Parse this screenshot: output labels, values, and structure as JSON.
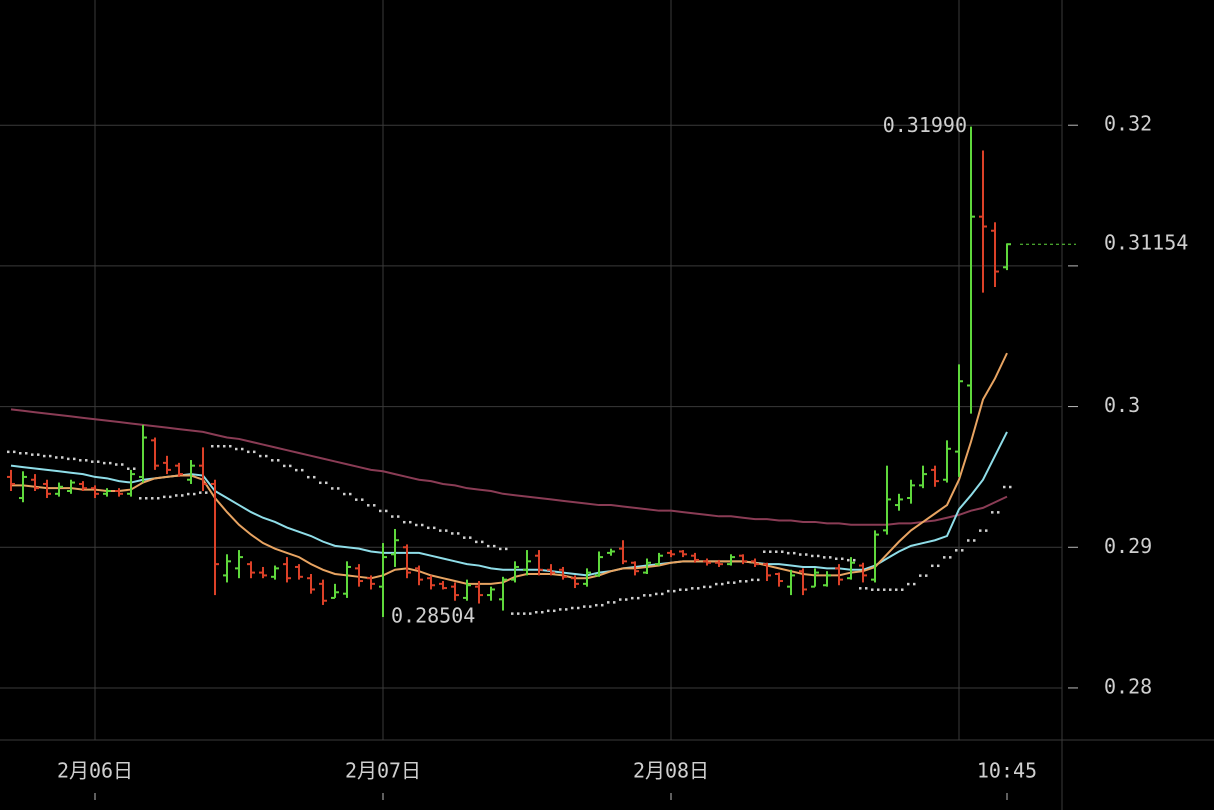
{
  "chart_data": {
    "type": "ohlc",
    "categories": [
      null,
      null,
      null,
      null,
      null,
      null,
      null,
      null,
      null,
      null,
      null,
      null,
      null,
      null,
      null,
      null,
      null,
      null,
      null,
      null,
      null,
      null,
      null,
      null,
      null,
      null,
      null,
      null,
      null,
      null,
      null,
      null,
      null,
      null,
      null,
      null,
      null,
      null,
      null,
      null,
      null,
      null,
      null,
      null,
      null,
      null,
      null,
      null,
      null,
      null,
      null,
      null,
      null,
      null,
      null,
      null,
      null,
      null,
      null,
      null,
      null,
      null,
      null,
      null,
      null,
      null,
      null,
      null,
      null,
      null,
      null,
      null,
      null,
      null,
      null,
      null,
      null,
      null,
      null,
      null,
      null,
      null,
      null,
      null
    ],
    "open": [
      0.295,
      0.2935,
      0.2948,
      0.2945,
      0.2938,
      0.294,
      0.2945,
      0.2942,
      0.2938,
      0.294,
      0.2938,
      0.295,
      0.2976,
      0.296,
      0.2958,
      0.2948,
      0.2958,
      0.2945,
      0.288,
      0.2885,
      0.2888,
      0.2882,
      0.2879,
      0.2888,
      0.2886,
      0.2878,
      0.2874,
      0.2864,
      0.2867,
      0.2885,
      0.2878,
      0.2872,
      0.2895,
      0.29,
      0.2885,
      0.2878,
      0.2874,
      0.2872,
      0.2864,
      0.2872,
      0.2866,
      0.2863,
      0.2877,
      0.2884,
      0.2894,
      0.2884,
      0.2884,
      0.2878,
      0.2874,
      0.288,
      0.2896,
      0.2899,
      0.2889,
      0.2882,
      0.2888,
      0.2896,
      0.2897,
      0.2894,
      0.289,
      0.2889,
      0.2888,
      0.2894,
      0.289,
      0.2888,
      0.2881,
      0.2872,
      0.2883,
      0.2872,
      0.2873,
      0.2885,
      0.2878,
      0.2887,
      0.2877,
      0.2912,
      0.293,
      0.2935,
      0.2944,
      0.2955,
      0.2948,
      0.2968,
      0.3015,
      0.3135,
      0.3125,
      0.3099
    ],
    "high": [
      0.2955,
      0.2954,
      0.2952,
      0.2948,
      0.2946,
      0.2948,
      0.2947,
      0.2944,
      0.2942,
      0.2942,
      0.2955,
      0.2987,
      0.2978,
      0.2965,
      0.296,
      0.2962,
      0.2971,
      0.2948,
      0.2895,
      0.2898,
      0.289,
      0.2886,
      0.2887,
      0.2893,
      0.2888,
      0.2881,
      0.2877,
      0.2874,
      0.289,
      0.2888,
      0.288,
      0.2903,
      0.2913,
      0.2902,
      0.2887,
      0.288,
      0.2876,
      0.2875,
      0.2877,
      0.2876,
      0.2872,
      0.2879,
      0.289,
      0.2898,
      0.2898,
      0.2888,
      0.2886,
      0.288,
      0.2885,
      0.2897,
      0.2899,
      0.2905,
      0.289,
      0.2892,
      0.2896,
      0.2898,
      0.2898,
      0.2896,
      0.2892,
      0.2891,
      0.2895,
      0.2895,
      0.2892,
      0.2889,
      0.2882,
      0.2884,
      0.2885,
      0.2885,
      0.2883,
      0.2888,
      0.2893,
      0.2889,
      0.2912,
      0.2958,
      0.2938,
      0.2948,
      0.2958,
      0.2958,
      0.2976,
      0.303,
      0.3199,
      0.3182,
      0.3131,
      0.3116
    ],
    "low": [
      0.294,
      0.2932,
      0.294,
      0.2935,
      0.2936,
      0.2938,
      0.294,
      0.2935,
      0.2936,
      0.2936,
      0.2936,
      0.2946,
      0.2955,
      0.2952,
      0.295,
      0.2945,
      0.294,
      0.2866,
      0.2875,
      0.2878,
      0.2878,
      0.2878,
      0.2877,
      0.2875,
      0.2877,
      0.2867,
      0.2859,
      0.2864,
      0.2864,
      0.2872,
      0.287,
      0.28504,
      0.2886,
      0.2878,
      0.2873,
      0.287,
      0.287,
      0.2862,
      0.2862,
      0.286,
      0.2862,
      0.2855,
      0.2875,
      0.288,
      0.288,
      0.288,
      0.2877,
      0.2871,
      0.2872,
      0.2879,
      0.2894,
      0.2888,
      0.288,
      0.2881,
      0.2887,
      0.2893,
      0.2893,
      0.2889,
      0.2887,
      0.2886,
      0.2887,
      0.2888,
      0.2886,
      0.2876,
      0.2872,
      0.2866,
      0.2866,
      0.2872,
      0.2872,
      0.2873,
      0.2877,
      0.2875,
      0.2875,
      0.2909,
      0.2926,
      0.2931,
      0.2942,
      0.2943,
      0.2946,
      0.295,
      0.2995,
      0.3081,
      0.3085,
      0.3097
    ],
    "close": [
      0.2945,
      0.295,
      0.2942,
      0.2938,
      0.2943,
      0.2946,
      0.2942,
      0.2938,
      0.294,
      0.2938,
      0.2952,
      0.2978,
      0.2958,
      0.2955,
      0.2952,
      0.2958,
      0.2945,
      0.2888,
      0.289,
      0.2893,
      0.2882,
      0.288,
      0.2885,
      0.2878,
      0.2879,
      0.287,
      0.2862,
      0.2868,
      0.2886,
      0.2876,
      0.2874,
      0.2893,
      0.2905,
      0.2882,
      0.2877,
      0.2873,
      0.2871,
      0.2866,
      0.2873,
      0.2866,
      0.287,
      0.2877,
      0.2886,
      0.289,
      0.2884,
      0.2882,
      0.2879,
      0.2874,
      0.2882,
      0.2893,
      0.2897,
      0.289,
      0.2883,
      0.2889,
      0.2894,
      0.2895,
      0.2895,
      0.2891,
      0.2889,
      0.2888,
      0.2893,
      0.289,
      0.2888,
      0.288,
      0.2876,
      0.288,
      0.287,
      0.2882,
      0.288,
      0.2877,
      0.2889,
      0.288,
      0.2909,
      0.2934,
      0.2934,
      0.2944,
      0.2952,
      0.2947,
      0.297,
      0.3018,
      0.3135,
      0.3128,
      0.3096,
      0.31154
    ],
    "up_color": "#5fd83c",
    "down_color": "#dc4128",
    "series": [
      {
        "color": "#8a3c55",
        "style": "line",
        "values": [
          0.2998,
          0.2997,
          0.2996,
          0.2995,
          0.2994,
          0.2993,
          0.2992,
          0.2991,
          0.299,
          0.2989,
          0.2988,
          0.2987,
          0.2986,
          0.2985,
          0.2984,
          0.2983,
          0.2982,
          0.298,
          0.2978,
          0.2977,
          0.2975,
          0.2973,
          0.2971,
          0.2969,
          0.2967,
          0.2965,
          0.2963,
          0.2961,
          0.2959,
          0.2957,
          0.2955,
          0.2954,
          0.2952,
          0.295,
          0.2948,
          0.2947,
          0.2945,
          0.2944,
          0.2942,
          0.2941,
          0.294,
          0.2938,
          0.2937,
          0.2936,
          0.2935,
          0.2934,
          0.2933,
          0.2932,
          0.2931,
          0.293,
          0.293,
          0.2929,
          0.2928,
          0.2927,
          0.2926,
          0.2926,
          0.2925,
          0.2924,
          0.2923,
          0.2922,
          0.2922,
          0.2921,
          0.292,
          0.292,
          0.2919,
          0.2919,
          0.2918,
          0.2918,
          0.2917,
          0.2917,
          0.2916,
          0.2916,
          0.2916,
          0.2916,
          0.2917,
          0.2917,
          0.2918,
          0.2919,
          0.2921,
          0.2923,
          0.2926,
          0.2928,
          0.2932,
          0.2936
        ]
      },
      {
        "color": "#8fdde8",
        "style": "line",
        "values": [
          0.2958,
          0.2957,
          0.2956,
          0.2955,
          0.2954,
          0.2953,
          0.2952,
          0.295,
          0.2949,
          0.2947,
          0.2946,
          0.2948,
          0.2949,
          0.295,
          0.2951,
          0.2952,
          0.2951,
          0.294,
          0.2935,
          0.293,
          0.2925,
          0.2921,
          0.2918,
          0.2914,
          0.2911,
          0.2908,
          0.2904,
          0.2901,
          0.29,
          0.2899,
          0.2897,
          0.2896,
          0.2896,
          0.2896,
          0.2896,
          0.2894,
          0.2892,
          0.289,
          0.2888,
          0.2887,
          0.2885,
          0.2884,
          0.2884,
          0.2884,
          0.2884,
          0.2883,
          0.2882,
          0.2881,
          0.288,
          0.2882,
          0.2883,
          0.2885,
          0.2886,
          0.2887,
          0.2888,
          0.2889,
          0.289,
          0.289,
          0.289,
          0.289,
          0.289,
          0.289,
          0.2889,
          0.2888,
          0.2888,
          0.2887,
          0.2886,
          0.2886,
          0.2885,
          0.2885,
          0.2884,
          0.2884,
          0.2887,
          0.2892,
          0.2897,
          0.2901,
          0.2903,
          0.2905,
          0.2908,
          0.2927,
          0.2937,
          0.2948,
          0.2965,
          0.2982
        ]
      },
      {
        "color": "#e8a462",
        "style": "line",
        "values": [
          0.2944,
          0.2944,
          0.2943,
          0.2942,
          0.2942,
          0.2942,
          0.2941,
          0.2941,
          0.294,
          0.294,
          0.2941,
          0.2946,
          0.2949,
          0.295,
          0.2951,
          0.2951,
          0.2948,
          0.2935,
          0.2925,
          0.2916,
          0.2909,
          0.2903,
          0.2899,
          0.2896,
          0.2893,
          0.2888,
          0.2884,
          0.2881,
          0.288,
          0.2879,
          0.2878,
          0.288,
          0.2884,
          0.2885,
          0.2883,
          0.288,
          0.2878,
          0.2876,
          0.2874,
          0.2874,
          0.2874,
          0.2875,
          0.2879,
          0.2881,
          0.2881,
          0.2881,
          0.288,
          0.2878,
          0.2878,
          0.288,
          0.2883,
          0.2885,
          0.2885,
          0.2886,
          0.2887,
          0.2889,
          0.289,
          0.289,
          0.289,
          0.289,
          0.289,
          0.289,
          0.2889,
          0.2887,
          0.2885,
          0.2883,
          0.2881,
          0.288,
          0.288,
          0.288,
          0.2882,
          0.2883,
          0.2886,
          0.2895,
          0.2904,
          0.2912,
          0.2918,
          0.2924,
          0.293,
          0.2948,
          0.2975,
          0.3005,
          0.302,
          0.3038
        ]
      },
      {
        "color": "#cfcfcf",
        "style": "dots",
        "values": [
          0.2968,
          0.2967,
          0.2966,
          0.2965,
          0.2964,
          0.2963,
          0.2962,
          0.2961,
          0.296,
          0.2959,
          0.2956,
          0.2935,
          0.2935,
          0.2936,
          0.2937,
          0.2938,
          0.2939,
          0.2972,
          0.2972,
          0.297,
          0.2968,
          0.2965,
          0.2962,
          0.2958,
          0.2955,
          0.295,
          0.2946,
          0.2942,
          0.2938,
          0.2934,
          0.293,
          0.2926,
          0.2922,
          0.2918,
          0.2916,
          0.2914,
          0.2912,
          0.291,
          0.2907,
          0.2904,
          0.2901,
          0.2899,
          0.2853,
          0.2853,
          0.2854,
          0.2855,
          0.2856,
          0.2857,
          0.2858,
          0.2859,
          0.2861,
          0.2863,
          0.2864,
          0.2866,
          0.2867,
          0.2869,
          0.287,
          0.2871,
          0.2872,
          0.2874,
          0.2875,
          0.2876,
          0.2877,
          0.2897,
          0.2897,
          0.2896,
          0.2895,
          0.2894,
          0.2893,
          0.2892,
          0.2891,
          0.2871,
          0.287,
          0.287,
          0.287,
          0.2874,
          0.288,
          0.2887,
          0.2893,
          0.2898,
          0.2905,
          0.2912,
          0.2925,
          0.2943
        ]
      }
    ],
    "ylim": [
      0.2763,
      0.3289
    ],
    "yticks": [
      0.28,
      0.29,
      0.3,
      0.31,
      0.32
    ],
    "ytick_labels_shown": [
      true,
      true,
      true,
      false,
      true
    ],
    "xticks": [
      {
        "value": 7,
        "label": "2月06日"
      },
      {
        "value": 31,
        "label": "2月07日"
      },
      {
        "value": 55,
        "label": "2月08日"
      },
      {
        "value": 83,
        "label": "10:45"
      }
    ],
    "xgrid": [
      7,
      31,
      55,
      79
    ],
    "grid": true,
    "annotations": [
      {
        "label": "0.31990",
        "value": 0.3199,
        "bar": 80,
        "side": "left"
      },
      {
        "label": "0.28504",
        "value": 0.28504,
        "bar": 31,
        "side": "right"
      }
    ],
    "last_price": {
      "label": "0.31154",
      "value": 0.31154,
      "color": "#5fd83c"
    }
  }
}
